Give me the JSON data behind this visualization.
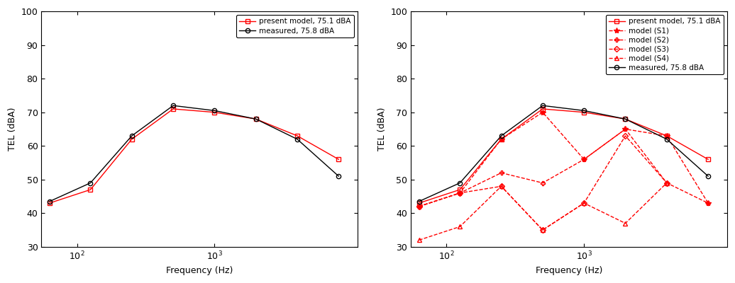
{
  "freq": [
    63,
    125,
    250,
    500,
    1000,
    2000,
    4000,
    8000
  ],
  "present_model": [
    43,
    47,
    62,
    71,
    70,
    68,
    63,
    56
  ],
  "measured": [
    43.5,
    49,
    63,
    72,
    70.5,
    68,
    62,
    51
  ],
  "S1": [
    42,
    46,
    62,
    70,
    56,
    65,
    63,
    43
  ],
  "S2": [
    42,
    46,
    52,
    49,
    56,
    65,
    49,
    43
  ],
  "S3": [
    42,
    46,
    48,
    35,
    43,
    63,
    49,
    null
  ],
  "S4": [
    32,
    36,
    48,
    35,
    43,
    37,
    49,
    null
  ],
  "ylim": [
    30,
    100
  ],
  "yticks": [
    30,
    40,
    50,
    60,
    70,
    80,
    90,
    100
  ],
  "xlabel": "Frequency (Hz)",
  "ylabel": "TEL (dBA)",
  "legend1": [
    "present model, 75.1 dBA",
    "measured, 75.8 dBA"
  ],
  "legend2": [
    "present model, 75.1 dBA",
    "model (S1)",
    "model (S2)",
    "model (S3)",
    "model (S4)",
    "measured, 75.8 dBA"
  ]
}
